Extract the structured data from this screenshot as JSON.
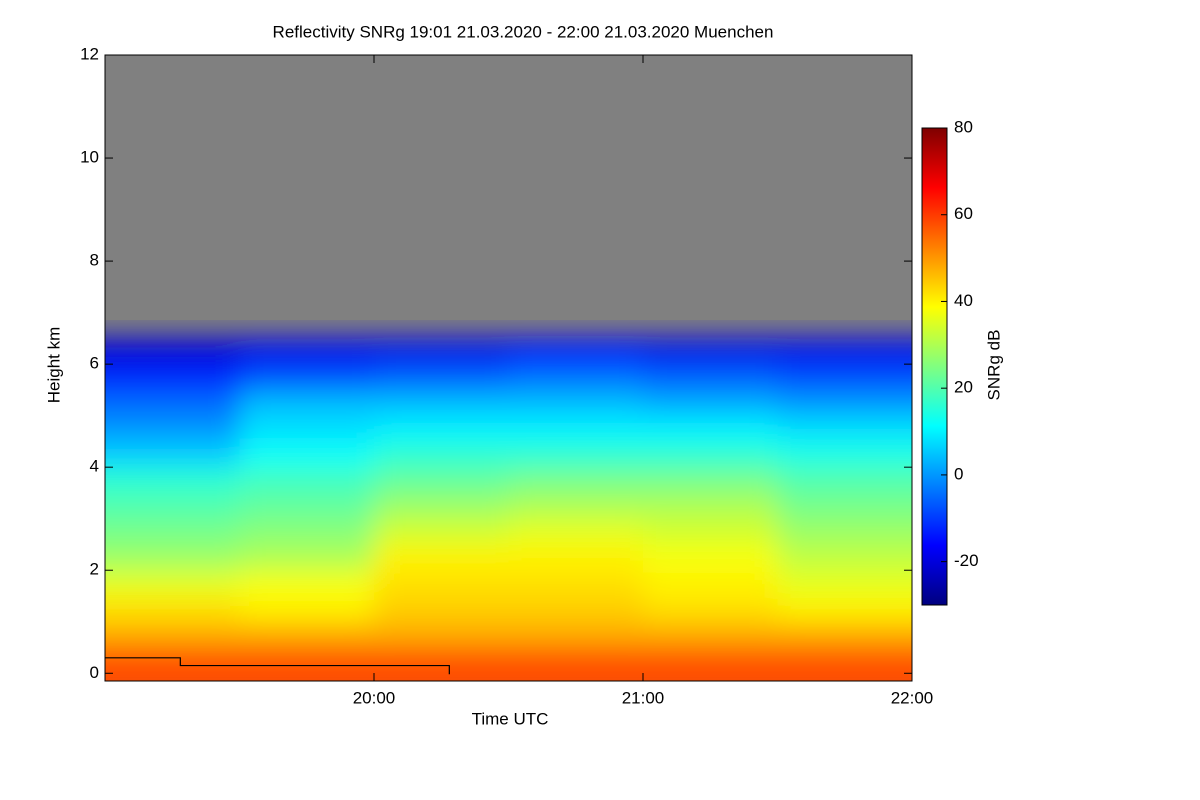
{
  "chart_data": {
    "type": "heatmap",
    "title": "Reflectivity SNRg   19:01 21.03.2020 - 22:00 21.03.2020 Muenchen",
    "x_label": "Time UTC",
    "y_label": "Height km",
    "colorbar_label": "SNRg dB",
    "xlim": [
      19,
      22
    ],
    "xticks": [
      {
        "value": 20,
        "label": "20:00"
      },
      {
        "value": 21,
        "label": "21:00"
      },
      {
        "value": 22,
        "label": "22:00"
      }
    ],
    "ylim": [
      -0.15,
      12
    ],
    "yticks": [
      0,
      2,
      4,
      6,
      8,
      10,
      12
    ],
    "zlim": [
      -30,
      80
    ],
    "zticks": [
      -20,
      0,
      20,
      40,
      60,
      80
    ],
    "colormap": [
      "#00007f",
      "#0000ff",
      "#0080ff",
      "#00ffff",
      "#80ff80",
      "#ffff00",
      "#ff8000",
      "#ff0000",
      "#7f0000"
    ],
    "no_data_color": "#808080",
    "x_bins": [
      19,
      19.5,
      20,
      20.5,
      21,
      21.5,
      22
    ],
    "y_bins": [
      0,
      0.5,
      1,
      1.5,
      2,
      2.5,
      3,
      3.5,
      4,
      4.5,
      5,
      5.5,
      6,
      6.5
    ],
    "z": [
      [
        58,
        58,
        58,
        58,
        58,
        58
      ],
      [
        48,
        48,
        48,
        48,
        48,
        48
      ],
      [
        42,
        40,
        44,
        44,
        42,
        40
      ],
      [
        36,
        38,
        42,
        42,
        40,
        36
      ],
      [
        28,
        30,
        40,
        40,
        38,
        32
      ],
      [
        24,
        26,
        34,
        36,
        34,
        28
      ],
      [
        20,
        22,
        28,
        30,
        30,
        24
      ],
      [
        16,
        18,
        22,
        24,
        24,
        20
      ],
      [
        6,
        12,
        16,
        16,
        16,
        14
      ],
      [
        0,
        8,
        10,
        10,
        10,
        8
      ],
      [
        -5,
        4,
        4,
        4,
        2,
        0
      ],
      [
        -12,
        -8,
        -6,
        -4,
        -6,
        -8
      ],
      [
        -20,
        -18,
        -18,
        -16,
        -18,
        -18
      ]
    ],
    "overlay": {
      "color": "#000000",
      "x": [
        19,
        19.28,
        19.28,
        20.28,
        20.28
      ],
      "y": [
        0.3,
        0.3,
        0.15,
        0.15,
        -0.02
      ]
    }
  }
}
